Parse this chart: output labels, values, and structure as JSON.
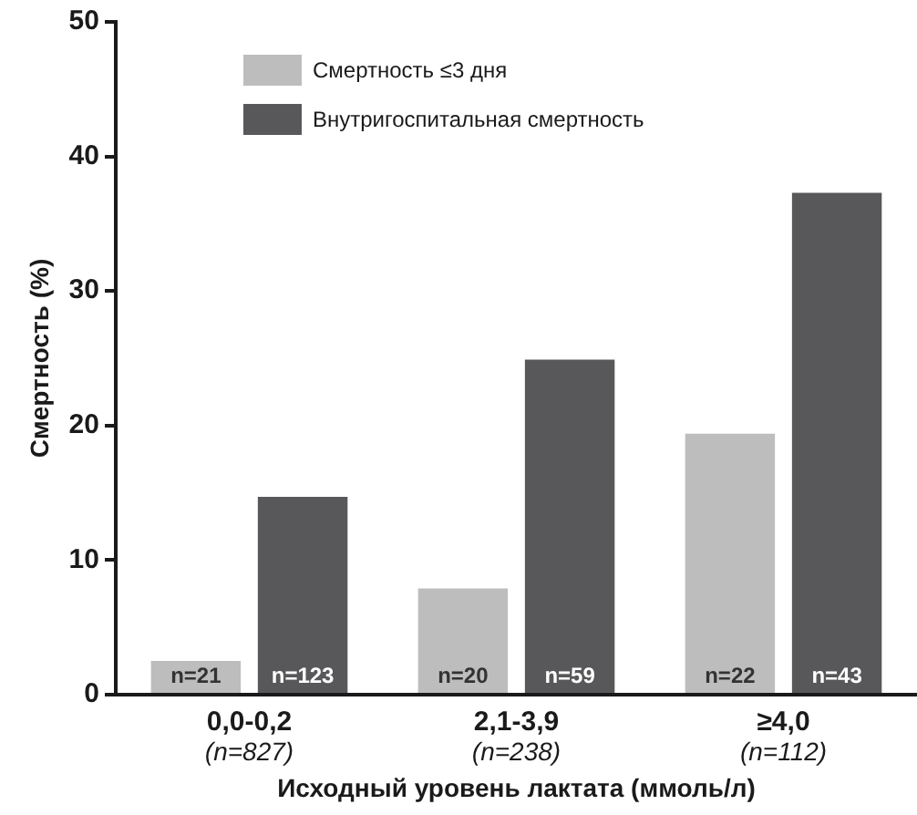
{
  "chart_data": {
    "type": "bar",
    "xlabel": "Исходный уровень лактата (ммоль/л)",
    "ylabel": "Смертность (%)",
    "categories": [
      "0,0-0,2\n(n=827)",
      "2,1-3,9\n(n=238)",
      "≥4,0\n(n=112)"
    ],
    "series": [
      {
        "name": "Смертность ≤3 дня",
        "color": "#bdbdbd",
        "values": [
          2.5,
          7.9,
          19.4
        ]
      },
      {
        "name": "Внутригоспитальная смертность",
        "color": "#58585a",
        "values": [
          14.7,
          24.9,
          37.3
        ]
      }
    ],
    "annotations": [
      "n=21",
      "n=20",
      "n=22",
      "n=123",
      "n=59",
      "n=43"
    ],
    "ylim": [
      0,
      50
    ],
    "yticks": [
      0,
      10,
      20,
      30,
      40,
      50
    ],
    "grid": false,
    "legend": "top left"
  }
}
